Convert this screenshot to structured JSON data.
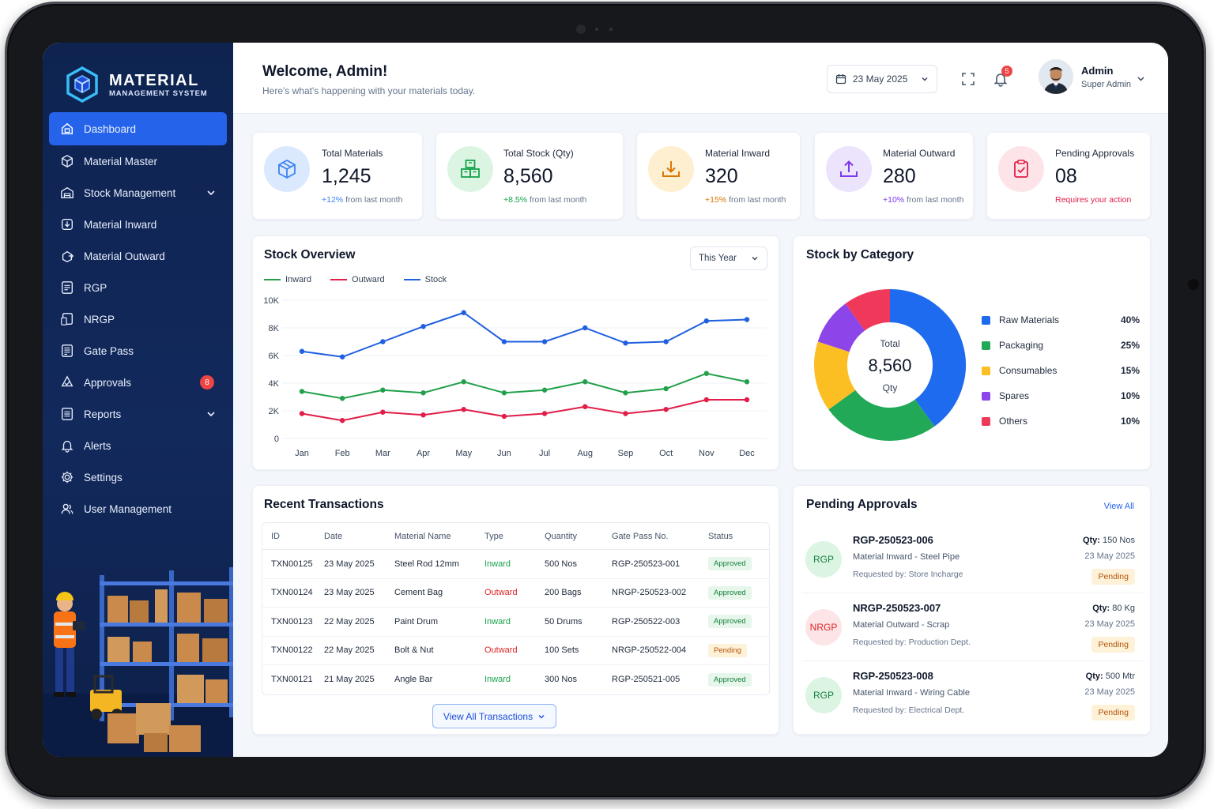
{
  "brand": {
    "title": "MATERIAL",
    "subtitle": "MANAGEMENT SYSTEM"
  },
  "sidebar": {
    "items": [
      {
        "label": "Dashboard",
        "icon": "dashboard-icon",
        "active": true
      },
      {
        "label": "Material Master",
        "icon": "box-icon"
      },
      {
        "label": "Stock Management",
        "icon": "warehouse-icon",
        "expandable": true
      },
      {
        "label": "Material Inward",
        "icon": "inward-icon"
      },
      {
        "label": "Material Outward",
        "icon": "outward-icon"
      },
      {
        "label": "RGP",
        "icon": "document-icon"
      },
      {
        "label": "NRGP",
        "icon": "document-icon"
      },
      {
        "label": "Gate Pass",
        "icon": "gatepass-icon"
      },
      {
        "label": "Approvals",
        "icon": "approvals-icon",
        "badge": "8"
      },
      {
        "label": "Reports",
        "icon": "report-icon",
        "expandable": true
      },
      {
        "label": "Alerts",
        "icon": "bell-icon"
      },
      {
        "label": "Settings",
        "icon": "gear-icon"
      },
      {
        "label": "User Management",
        "icon": "users-icon"
      }
    ]
  },
  "header": {
    "title": "Welcome, Admin!",
    "subtitle": "Here's what's happening with your materials today.",
    "date": "23 May 2025",
    "notification_count": "5",
    "user_name": "Admin",
    "user_role": "Super Admin"
  },
  "kpis": [
    {
      "label": "Total Materials",
      "value": "1,245",
      "trend": "+12%",
      "trend_text": "from last month",
      "color": "#3b82f6",
      "bg": "#dbe9fe",
      "icon": "cube-icon"
    },
    {
      "label": "Total Stock (Qty)",
      "value": "8,560",
      "trend": "+8.5%",
      "trend_text": "from last month",
      "color": "#16a34a",
      "bg": "#dcf5e3",
      "icon": "boxes-icon"
    },
    {
      "label": "Material Inward",
      "value": "320",
      "trend": "+15%",
      "trend_text": "from last month",
      "color": "#d97706",
      "bg": "#fdefcf",
      "icon": "download-icon"
    },
    {
      "label": "Material Outward",
      "value": "280",
      "trend": "+10%",
      "trend_text": "from last month",
      "color": "#7c3aed",
      "bg": "#ece3fd",
      "icon": "upload-icon"
    },
    {
      "label": "Pending Approvals",
      "value": "08",
      "trend": "",
      "trend_text": "Requires your action",
      "color": "#e11d48",
      "bg": "#fde4e8",
      "icon": "clipboard-check-icon"
    }
  ],
  "stock_overview": {
    "title": "Stock Overview",
    "period": "This Year"
  },
  "chart_data": {
    "type": "line",
    "categories": [
      "Jan",
      "Feb",
      "Mar",
      "Apr",
      "May",
      "Jun",
      "Jul",
      "Aug",
      "Sep",
      "Oct",
      "Nov",
      "Dec"
    ],
    "series": [
      {
        "name": "Inward",
        "color": "#22a04b",
        "values": [
          3400,
          2900,
          3500,
          3300,
          4100,
          3300,
          3500,
          4100,
          3300,
          3600,
          4700,
          4100
        ]
      },
      {
        "name": "Outward",
        "color": "#e11d48",
        "values": [
          1800,
          1300,
          1900,
          1700,
          2100,
          1600,
          1800,
          2300,
          1800,
          2100,
          2800,
          2800
        ]
      },
      {
        "name": "Stock",
        "color": "#1f5fe0",
        "values": [
          6300,
          5900,
          7000,
          8100,
          9100,
          7000,
          7000,
          8000,
          6900,
          7000,
          8500,
          8600
        ]
      }
    ],
    "ylim": [
      0,
      10000
    ],
    "yticks": [
      "0",
      "2K",
      "4K",
      "6K",
      "8K",
      "10K"
    ],
    "grid": true,
    "legend": "top-left"
  },
  "category": {
    "title": "Stock by Category",
    "center_label": "Total",
    "center_value": "8,560",
    "center_unit": "Qty",
    "slices": [
      {
        "name": "Raw Materials",
        "pct": "40%",
        "value": 40,
        "color": "#1f6bf0"
      },
      {
        "name": "Packaging",
        "pct": "25%",
        "value": 25,
        "color": "#22a958"
      },
      {
        "name": "Consumables",
        "pct": "15%",
        "value": 15,
        "color": "#fbbf24"
      },
      {
        "name": "Spares",
        "pct": "10%",
        "value": 10,
        "color": "#8b45e8"
      },
      {
        "name": "Others",
        "pct": "10%",
        "value": 10,
        "color": "#f0385b"
      }
    ]
  },
  "transactions": {
    "title": "Recent Transactions",
    "columns": [
      "ID",
      "Date",
      "Material Name",
      "Type",
      "Quantity",
      "Gate Pass No.",
      "Status"
    ],
    "rows": [
      {
        "id": "TXN00125",
        "date": "23 May 2025",
        "material": "Steel Rod 12mm",
        "type": "Inward",
        "qty": "500 Nos",
        "gp": "RGP-250523-001",
        "status": "Approved"
      },
      {
        "id": "TXN00124",
        "date": "23 May 2025",
        "material": "Cement Bag",
        "type": "Outward",
        "qty": "200 Bags",
        "gp": "NRGP-250523-002",
        "status": "Approved"
      },
      {
        "id": "TXN00123",
        "date": "22 May 2025",
        "material": "Paint Drum",
        "type": "Inward",
        "qty": "50 Drums",
        "gp": "RGP-250522-003",
        "status": "Approved"
      },
      {
        "id": "TXN00122",
        "date": "22 May 2025",
        "material": "Bolt & Nut",
        "type": "Outward",
        "qty": "100 Sets",
        "gp": "NRGP-250522-004",
        "status": "Pending"
      },
      {
        "id": "TXN00121",
        "date": "21 May 2025",
        "material": "Angle Bar",
        "type": "Inward",
        "qty": "300 Nos",
        "gp": "RGP-250521-005",
        "status": "Approved"
      }
    ],
    "view_all_label": "View All Transactions"
  },
  "approvals": {
    "title": "Pending Approvals",
    "view_all_label": "View All",
    "items": [
      {
        "kind": "RGP",
        "id": "RGP-250523-006",
        "desc": "Material Inward - Steel Pipe",
        "requested": "Requested by: Store Incharge",
        "qty_label": "Qty:",
        "qty": "150 Nos",
        "date": "23 May 2025",
        "status": "Pending"
      },
      {
        "kind": "NRGP",
        "id": "NRGP-250523-007",
        "desc": "Material Outward - Scrap",
        "requested": "Requested by: Production Dept.",
        "qty_label": "Qty:",
        "qty": "80 Kg",
        "date": "23 May 2025",
        "status": "Pending"
      },
      {
        "kind": "RGP",
        "id": "RGP-250523-008",
        "desc": "Material Inward - Wiring Cable",
        "requested": "Requested by: Electrical Dept.",
        "qty_label": "Qty:",
        "qty": "500 Mtr",
        "date": "23 May 2025",
        "status": "Pending"
      }
    ]
  }
}
